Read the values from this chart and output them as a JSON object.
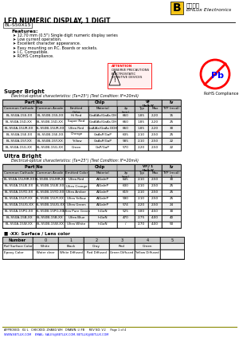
{
  "title": "LED NUMERIC DISPLAY, 1 DIGIT",
  "part_number": "BL-S50X15",
  "company_name": "BriLux Electronics",
  "company_chinese": "百求光电",
  "features": [
    "12.70 mm (0.5\") Single digit numeric display series",
    "Low current operation.",
    "Excellent character appearance.",
    "Easy mounting on P.C. Boards or sockets.",
    "I.C. Compatible.",
    "ROHS Compliance."
  ],
  "super_bright_title": "Super Bright",
  "super_bright_condition": "Electrical-optical characteristics: (Ta=25°) (Test Condition: IF=20mA)",
  "sb_headers": [
    "Part No",
    "Chip",
    "VF Unit:V",
    "Iv"
  ],
  "sb_subheaders_partno": [
    "Common Cathode",
    "Common Anode"
  ],
  "sb_subheaders_chip": [
    "Emitted Color",
    "Material",
    "λp (nm)"
  ],
  "sb_subheaders_vf": [
    "Typ",
    "Max"
  ],
  "sb_subheaders_iv": [
    "TYP (mcd)"
  ],
  "sb_rows": [
    [
      "BL-S50A-15S-XX",
      "BL-S50B-15S-XX",
      "Hi Red",
      "GaAlAs/GaAs DH",
      "660",
      "1.85",
      "2.20",
      "15"
    ],
    [
      "BL-S50A-15D-XX",
      "BL-S50B-15D-XX",
      "Super Red",
      "GaAlAs/GaAs DH",
      "660",
      "1.85",
      "2.20",
      "25"
    ],
    [
      "BL-S50A-15UR-XX",
      "BL-S50B-15UR-XX",
      "Ultra Red",
      "GaAlAs/GaAs DDH",
      "660",
      "1.85",
      "2.20",
      "30"
    ],
    [
      "BL-S50A-15E-XX",
      "BL-S50B-15E-XX",
      "Orange",
      "GaAsP/GaP",
      "635",
      "2.10",
      "2.50",
      "25"
    ],
    [
      "BL-S50A-15Y-XX",
      "BL-S50B-15Y-XX",
      "Yellow",
      "GaAsP/GaP",
      "585",
      "2.10",
      "2.50",
      "22"
    ],
    [
      "BL-S50A-15G-XX",
      "BL-S50B-15G-XX",
      "Green",
      "GaP/GaP",
      "570",
      "2.20",
      "2.50",
      "22"
    ]
  ],
  "ultra_bright_title": "Ultra Bright",
  "ultra_bright_condition": "Electrical-optical characteristics: (Ta=25°) (Test Condition: IF=20mA)",
  "ub_rows": [
    [
      "BL-S50A-15UHR-XX",
      "BL-S50B-15UHR-XX",
      "Ultra Red",
      "AlGaInP",
      "645",
      "2.10",
      "2.50",
      "30"
    ],
    [
      "BL-S50A-15UE-XX",
      "BL-S50B-15UE-XX",
      "Ultra Orange",
      "AlGaInP",
      "630",
      "2.10",
      "2.50",
      "25"
    ],
    [
      "BL-S50A-15YD-XX",
      "BL-S50B-15YD-XX",
      "Ultra Amber",
      "AlGaInP",
      "619",
      "2.10",
      "2.50",
      "25"
    ],
    [
      "BL-S50A-15UY-XX",
      "BL-S50B-15UY-XX",
      "Ultra Yellow",
      "AlGaInP",
      "590",
      "2.10",
      "2.50",
      "25"
    ],
    [
      "BL-S50A-15UG-XX",
      "BL-S50B-15UG-XX",
      "Ultra Green",
      "AlGaInP",
      "574",
      "2.20",
      "2.50",
      "24"
    ],
    [
      "BL-S50A-15PG-XX",
      "BL-S50B-15PG-XX",
      "Ultra Pure Green",
      "InGaN",
      "525",
      "3.80",
      "4.50",
      "30"
    ],
    [
      "BL-S50A-15B-XX",
      "BL-S50B-15B-XX",
      "Ultra Blue",
      "InGaN",
      "470",
      "2.75",
      "4.00",
      "40"
    ],
    [
      "BL-S50A-15W-XX",
      "BL-S50B-15W-XX",
      "Ultra White",
      "InGaN",
      "/",
      "2.70",
      "4.00",
      "50"
    ]
  ],
  "surface_lens_title": "-XX: Surface / Lens color",
  "lens_headers": [
    "Number",
    "0",
    "1",
    "2",
    "3",
    "4",
    "5"
  ],
  "lens_row1_label": "Ref Surface Color",
  "lens_row1": [
    "White",
    "Black",
    "Gray",
    "Red",
    "Green",
    ""
  ],
  "lens_row2_label": "Epoxy Color",
  "lens_row2": [
    "Water clear",
    "White Diffused",
    "Red Diffused",
    "Green Diffused",
    "Yellow Diffused",
    ""
  ],
  "footer": "APPROVED:  XU L   CHECKED: ZHANG WH   DRAWN: LI FB     REV NO: V.2     Page 1 of 4",
  "website": "WWW.BETLUX.COM    EMAIL: SALES@BETLUX.COM, BETLUX@BETLUX.COM",
  "bg_color": "#ffffff",
  "table_header_bg": "#c8c8c8",
  "table_row_alt": "#f0f0f0"
}
